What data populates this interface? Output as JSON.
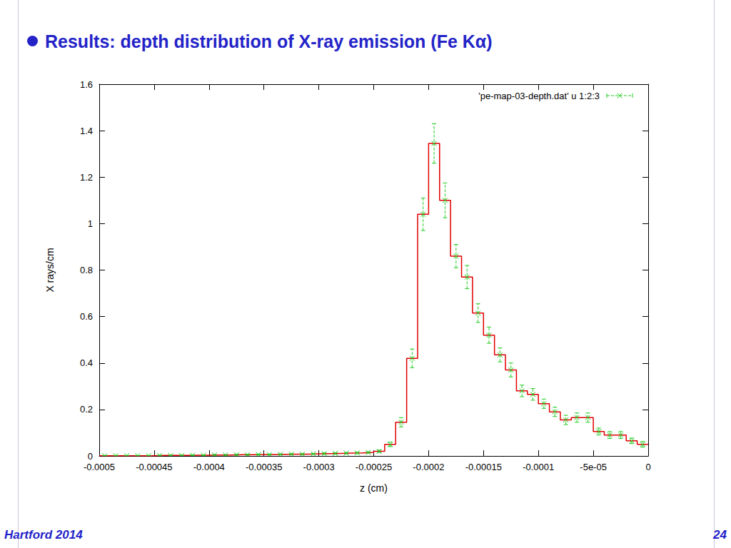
{
  "chart_data": {
    "type": "histogram",
    "title": "Results: depth distribution of X-ray emission (Fe Kα)",
    "x_label": "z (cm)",
    "y_label": "X rays/cm",
    "bins": [
      -0.0005,
      -0.00049,
      -0.00048,
      -0.00047,
      -0.00046,
      -0.00045,
      -0.00044,
      -0.00043,
      -0.00042,
      -0.00041,
      -0.0004,
      -0.00039,
      -0.00038,
      -0.00037,
      -0.00036,
      -0.00035,
      -0.00034,
      -0.00033,
      -0.00032,
      -0.00031,
      -0.0003,
      -0.00029,
      -0.00028,
      -0.00027,
      -0.00026,
      -0.00025,
      -0.00024,
      -0.00023,
      -0.00022,
      -0.00021,
      -0.0002,
      -0.00019,
      -0.00018,
      -0.00017,
      -0.00016,
      -0.00015,
      -0.00014,
      -0.00013,
      -0.00012,
      -0.00011,
      -0.0001,
      -9e-05,
      -8e-05,
      -7e-05,
      -6e-05,
      -5e-05,
      -4e-05,
      -3e-05,
      -2e-05,
      -1e-05,
      0
    ],
    "series": [
      {
        "type": "line",
        "line_style": "step",
        "color": "#e00000",
        "values": [
          0.001,
          0.001,
          0.001,
          0.001,
          0.001,
          0.002,
          0.002,
          0.002,
          0.003,
          0.003,
          0.004,
          0.004,
          0.005,
          0.005,
          0.006,
          0.006,
          0.007,
          0.008,
          0.008,
          0.009,
          0.01,
          0.011,
          0.012,
          0.013,
          0.015,
          0.02,
          0.05,
          0.145,
          0.42,
          1.04,
          1.345,
          1.1,
          0.86,
          0.77,
          0.615,
          0.52,
          0.435,
          0.37,
          0.28,
          0.265,
          0.225,
          0.19,
          0.155,
          0.165,
          0.165,
          0.105,
          0.09,
          0.09,
          0.065,
          0.05
        ]
      },
      {
        "type": "errorbar",
        "name": "'pe-map-03-depth.dat' u 1:2:3",
        "color": "#22cc22",
        "marker": "x",
        "line_style": "dashed",
        "values": [
          0.001,
          0.001,
          0.001,
          0.001,
          0.001,
          0.002,
          0.002,
          0.002,
          0.003,
          0.003,
          0.004,
          0.004,
          0.005,
          0.005,
          0.006,
          0.006,
          0.007,
          0.008,
          0.008,
          0.009,
          0.01,
          0.011,
          0.012,
          0.013,
          0.015,
          0.02,
          0.05,
          0.145,
          0.42,
          1.04,
          1.345,
          1.1,
          0.86,
          0.77,
          0.615,
          0.52,
          0.435,
          0.37,
          0.28,
          0.265,
          0.225,
          0.19,
          0.155,
          0.165,
          0.165,
          0.105,
          0.09,
          0.09,
          0.065,
          0.05
        ],
        "errors": [
          0.001,
          0.001,
          0.001,
          0.001,
          0.001,
          0.001,
          0.001,
          0.001,
          0.001,
          0.001,
          0.002,
          0.002,
          0.002,
          0.002,
          0.002,
          0.002,
          0.002,
          0.002,
          0.002,
          0.002,
          0.003,
          0.003,
          0.003,
          0.003,
          0.003,
          0.005,
          0.01,
          0.02,
          0.04,
          0.07,
          0.085,
          0.075,
          0.05,
          0.05,
          0.04,
          0.035,
          0.03,
          0.03,
          0.025,
          0.025,
          0.02,
          0.02,
          0.02,
          0.02,
          0.02,
          0.015,
          0.015,
          0.015,
          0.012,
          0.012
        ]
      }
    ],
    "xlim": [
      -0.0005,
      0
    ],
    "xticks": [
      -0.0005,
      -0.00045,
      -0.0004,
      -0.00035,
      -0.0003,
      -0.00025,
      -0.0002,
      -0.00015,
      -0.0001,
      {
        "value": -5e-05,
        "label": "-5e-05"
      },
      0
    ],
    "ylim": [
      0,
      1.6
    ],
    "yticks": [
      0,
      0.2,
      0.4,
      0.6,
      0.8,
      1,
      1.2,
      1.4,
      1.6
    ],
    "grid": false,
    "legend": "upper right"
  },
  "footer": "Hartford 2014",
  "page": 24
}
